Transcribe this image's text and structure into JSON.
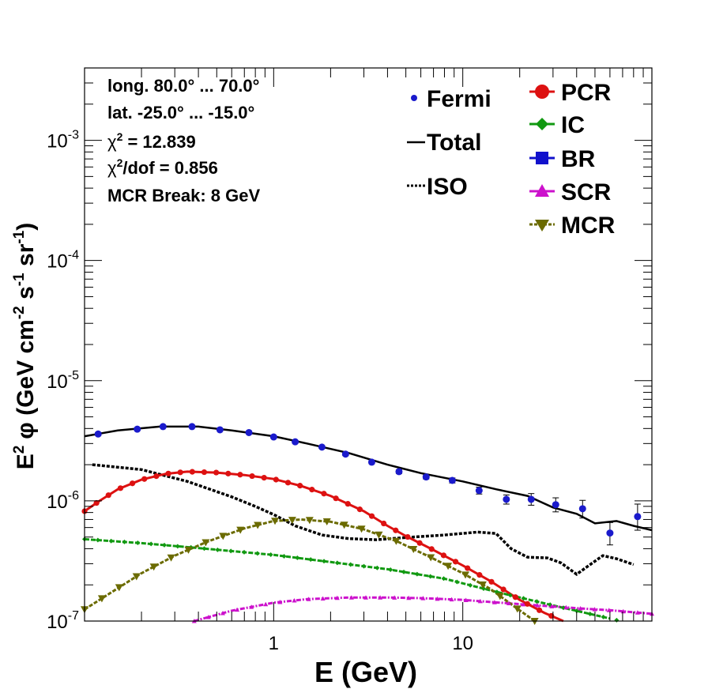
{
  "chart_data": {
    "type": "line",
    "xlabel": "E (GeV)",
    "ylabel_parts": {
      "e": "E",
      "two": "2",
      "phi": "φ (GeV cm",
      "m2": "-2",
      "s": " s",
      "m1a": "-1",
      "sr": " sr",
      "m1b": "-1",
      "close": ")"
    },
    "x_scale": "log",
    "y_scale": "log",
    "xlim": [
      0.1,
      100
    ],
    "ylim": [
      1e-07,
      0.004
    ],
    "x_tick_labels": [
      {
        "value": 1,
        "label": "1"
      },
      {
        "value": 10,
        "label": "10"
      }
    ],
    "y_tick_labels": [
      {
        "value": 1e-07,
        "base": "10",
        "exp": "-7"
      },
      {
        "value": 1e-06,
        "base": "10",
        "exp": "-6"
      },
      {
        "value": 1e-05,
        "base": "10",
        "exp": "-5"
      },
      {
        "value": 0.0001,
        "base": "10",
        "exp": "-4"
      },
      {
        "value": 0.001,
        "base": "10",
        "exp": "-3"
      }
    ],
    "info": {
      "longitude": "long. 80.0° ... 70.0°",
      "latitude": "lat. -25.0° ... -15.0°",
      "chi2_sym": "χ",
      "chi2_exp": "2",
      "chi2_val": " = 12.839",
      "chi2dof_val": "/dof = 0.856",
      "mcr_break": "MCR Break:  8 GeV"
    },
    "legend_left": [
      {
        "key": "fermi",
        "label": "Fermi"
      },
      {
        "key": "total",
        "label": "Total"
      },
      {
        "key": "iso",
        "label": "ISO"
      }
    ],
    "legend_right": [
      {
        "key": "pcr",
        "label": "PCR"
      },
      {
        "key": "ic",
        "label": "IC"
      },
      {
        "key": "br",
        "label": "BR"
      },
      {
        "key": "scr",
        "label": "SCR"
      },
      {
        "key": "mcr",
        "label": "MCR"
      }
    ],
    "colors": {
      "fermi": "#1a1acc",
      "total": "#000000",
      "iso": "#000000",
      "pcr": "#dd1111",
      "ic": "#119911",
      "br": "#1111cc",
      "scr": "#cc11cc",
      "mcr": "#6b6b00"
    },
    "fermi": {
      "points": [
        [
          0.118,
          3.6e-06
        ],
        [
          0.19,
          3.95e-06
        ],
        [
          0.26,
          4.15e-06
        ],
        [
          0.37,
          4.15e-06
        ],
        [
          0.52,
          3.9e-06
        ],
        [
          0.74,
          3.7e-06
        ],
        [
          1.0,
          3.4e-06
        ],
        [
          1.3,
          3.1e-06
        ],
        [
          1.8,
          2.8e-06
        ],
        [
          2.4,
          2.45e-06
        ],
        [
          3.3,
          2.1e-06
        ],
        [
          4.6,
          1.75e-06
        ],
        [
          6.4,
          1.58e-06
        ],
        [
          8.8,
          1.48e-06
        ],
        [
          12.2,
          1.22e-06
        ],
        [
          17.0,
          1.03e-06
        ],
        [
          23.0,
          1.03e-06
        ],
        [
          31.0,
          9.3e-07
        ],
        [
          43.0,
          8.6e-07
        ],
        [
          60.0,
          5.4e-07
        ],
        [
          84.0,
          7.4e-07
        ]
      ],
      "err_lo": [
        3.5e-06,
        3.86e-06,
        4.06e-06,
        4.06e-06,
        3.81e-06,
        3.61e-06,
        3.32e-06,
        3.02e-06,
        2.73e-06,
        2.38e-06,
        2.04e-06,
        1.69e-06,
        1.52e-06,
        1.41e-06,
        1.14e-06,
        9.4e-07,
        9.2e-07,
        8.1e-07,
        7.2e-07,
        4.3e-07,
        5.7e-07
      ],
      "err_hi": [
        3.7e-06,
        4.04e-06,
        4.24e-06,
        4.24e-06,
        3.99e-06,
        3.79e-06,
        3.48e-06,
        3.18e-06,
        2.87e-06,
        2.52e-06,
        2.16e-06,
        1.81e-06,
        1.64e-06,
        1.55e-06,
        1.3e-06,
        1.12e-06,
        1.15e-06,
        1.06e-06,
        1.01e-06,
        6.6e-07,
        9.4e-07
      ]
    },
    "total": [
      [
        0.1,
        3.45e-06
      ],
      [
        0.15,
        3.85e-06
      ],
      [
        0.25,
        4.15e-06
      ],
      [
        0.4,
        4.15e-06
      ],
      [
        0.6,
        3.85e-06
      ],
      [
        1.0,
        3.45e-06
      ],
      [
        1.5,
        3e-06
      ],
      [
        2.5,
        2.5e-06
      ],
      [
        4.0,
        2e-06
      ],
      [
        6.0,
        1.7e-06
      ],
      [
        10.0,
        1.45e-06
      ],
      [
        15.0,
        1.25e-06
      ],
      [
        22.0,
        1.1e-06
      ],
      [
        30.0,
        8.8e-07
      ],
      [
        40.0,
        7.8e-07
      ],
      [
        50.0,
        6.5e-07
      ],
      [
        65.0,
        6.8e-07
      ],
      [
        80.0,
        6.2e-07
      ],
      [
        100.0,
        5.7e-07
      ]
    ],
    "iso": [
      [
        0.11,
        2e-06
      ],
      [
        0.2,
        1.82e-06
      ],
      [
        0.35,
        1.45e-06
      ],
      [
        0.6,
        1.08e-06
      ],
      [
        0.8,
        9e-07
      ],
      [
        1.0,
        7.7e-07
      ],
      [
        1.3,
        6.2e-07
      ],
      [
        1.8,
        5.2e-07
      ],
      [
        2.5,
        4.85e-07
      ],
      [
        3.5,
        4.75e-07
      ],
      [
        5.0,
        4.95e-07
      ],
      [
        8.0,
        5.2e-07
      ],
      [
        12.0,
        5.5e-07
      ],
      [
        15.0,
        5.35e-07
      ],
      [
        18.0,
        4e-07
      ],
      [
        22.0,
        3.4e-07
      ],
      [
        28.0,
        3.35e-07
      ],
      [
        33.0,
        3.05e-07
      ],
      [
        40.0,
        2.45e-07
      ],
      [
        45.0,
        2.8e-07
      ],
      [
        55.0,
        3.5e-07
      ],
      [
        65.0,
        3.3e-07
      ],
      [
        80.0,
        2.95e-07
      ]
    ],
    "pcr": [
      [
        0.1,
        8.2e-07
      ],
      [
        0.12,
        1e-06
      ],
      [
        0.15,
        1.25e-06
      ],
      [
        0.2,
        1.5e-06
      ],
      [
        0.27,
        1.68e-06
      ],
      [
        0.35,
        1.75e-06
      ],
      [
        0.5,
        1.72e-06
      ],
      [
        0.7,
        1.64e-06
      ],
      [
        1.0,
        1.52e-06
      ],
      [
        1.4,
        1.33e-06
      ],
      [
        2.0,
        1.1e-06
      ],
      [
        3.0,
        8.2e-07
      ],
      [
        4.0,
        6.2e-07
      ],
      [
        5.0,
        5.1e-07
      ],
      [
        7.0,
        3.9e-07
      ],
      [
        10.0,
        2.9e-07
      ],
      [
        14.0,
        2.15e-07
      ],
      [
        20.0,
        1.5e-07
      ],
      [
        27.0,
        1.17e-07
      ],
      [
        34.0,
        1e-07
      ]
    ],
    "ic": [
      [
        0.1,
        4.8e-07
      ],
      [
        0.2,
        4.45e-07
      ],
      [
        0.4,
        4.05e-07
      ],
      [
        1.0,
        3.55e-07
      ],
      [
        2.0,
        3.1e-07
      ],
      [
        4.0,
        2.7e-07
      ],
      [
        8.0,
        2.25e-07
      ],
      [
        15.0,
        1.75e-07
      ],
      [
        30.0,
        1.35e-07
      ],
      [
        60.0,
        1.05e-07
      ],
      [
        90.0,
        9e-08
      ]
    ],
    "scr": [
      [
        0.38,
        1e-07
      ],
      [
        0.6,
        1.22e-07
      ],
      [
        1.0,
        1.42e-07
      ],
      [
        1.5,
        1.52e-07
      ],
      [
        2.5,
        1.57e-07
      ],
      [
        4.0,
        1.57e-07
      ],
      [
        6.0,
        1.55e-07
      ],
      [
        10.0,
        1.5e-07
      ],
      [
        15.0,
        1.43e-07
      ],
      [
        25.0,
        1.35e-07
      ],
      [
        40.0,
        1.28e-07
      ],
      [
        60.0,
        1.23e-07
      ],
      [
        100.0,
        1.15e-07
      ]
    ],
    "mcr": [
      [
        0.1,
        1.25e-07
      ],
      [
        0.14,
        1.75e-07
      ],
      [
        0.2,
        2.5e-07
      ],
      [
        0.3,
        3.5e-07
      ],
      [
        0.45,
        4.6e-07
      ],
      [
        0.7,
        5.9e-07
      ],
      [
        1.0,
        6.8e-07
      ],
      [
        1.4,
        7e-07
      ],
      [
        2.0,
        6.7e-07
      ],
      [
        3.0,
        5.8e-07
      ],
      [
        4.5,
        4.6e-07
      ],
      [
        7.0,
        3.3e-07
      ],
      [
        10.0,
        2.5e-07
      ],
      [
        14.0,
        1.85e-07
      ],
      [
        19.0,
        1.3e-07
      ],
      [
        24.0,
        1e-07
      ]
    ]
  }
}
